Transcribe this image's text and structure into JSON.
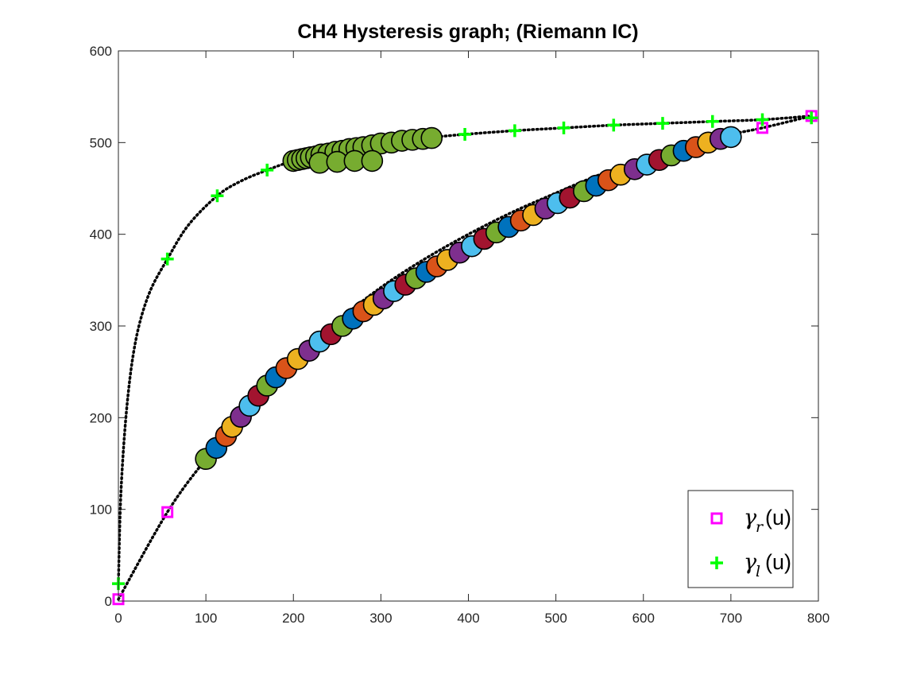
{
  "chart_data": {
    "type": "scatter",
    "title": "CH4 Hysteresis graph; (Riemann IC)",
    "xlabel": "",
    "ylabel": "",
    "xlim": [
      0,
      800
    ],
    "ylim": [
      0,
      600
    ],
    "xticks": [
      0,
      100,
      200,
      300,
      400,
      500,
      600,
      700,
      800
    ],
    "yticks": [
      0,
      100,
      200,
      300,
      400,
      500,
      600
    ],
    "grid": false,
    "legend_placement": "bottom-right",
    "legend": [
      {
        "symbol": "γ",
        "subscript": "r",
        "argument": "(u)",
        "marker": "square",
        "color": "#FF00FF"
      },
      {
        "symbol": "γ",
        "subscript": "l",
        "argument": "(u)",
        "marker": "plus",
        "color": "#00FF00"
      }
    ],
    "series": [
      {
        "marker": "square",
        "color": "#FF00FF",
        "x": [
          0,
          56,
          736,
          792
        ],
        "y": [
          2,
          97,
          516,
          529
        ]
      },
      {
        "marker": "plus",
        "color": "#00FF00",
        "x": [
          0,
          56,
          113,
          170,
          396,
          453,
          509,
          566,
          622,
          679,
          736,
          792
        ],
        "y": [
          19,
          373,
          442,
          470,
          509,
          513,
          516,
          519,
          521,
          523,
          525,
          527
        ]
      },
      {
        "name_hint": "dotted hysteresis curve (upper, left branch)",
        "line": "dotted",
        "x": [
          0,
          3,
          10,
          20,
          35,
          56,
          80,
          113,
          140,
          170,
          200,
          250,
          300,
          350,
          396,
          453,
          509,
          566,
          622,
          679,
          736,
          792
        ],
        "y": [
          19,
          120,
          215,
          285,
          335,
          373,
          410,
          442,
          458,
          470,
          480,
          492,
          500,
          505,
          509,
          513,
          516,
          519,
          521,
          523,
          525,
          529
        ]
      },
      {
        "name_hint": "dotted hysteresis curve (lower, right branch)",
        "line": "dotted",
        "x": [
          0,
          56,
          100,
          150,
          200,
          250,
          300,
          350,
          400,
          450,
          500,
          550,
          600,
          650,
          700,
          736,
          792
        ],
        "y": [
          2,
          97,
          155,
          213,
          263,
          305,
          342,
          373,
          400,
          424,
          445,
          465,
          482,
          497,
          509,
          516,
          529
        ]
      },
      {
        "name_hint": "wave circles along lower branch",
        "marker": "circle",
        "colors": [
          "#77AC30",
          "#0072BD",
          "#D95319",
          "#EDB120",
          "#7E2F8E",
          "#4DBEEE",
          "#A2142F"
        ],
        "x": [
          100,
          112,
          123,
          130,
          140,
          150,
          160,
          170,
          180,
          192,
          205,
          218,
          230,
          243,
          256,
          268,
          280,
          292,
          303,
          315,
          328,
          340,
          352,
          364,
          376,
          390,
          404,
          418,
          432,
          446,
          460,
          474,
          488,
          502,
          516,
          532,
          546,
          560,
          574,
          590,
          604,
          618,
          632,
          646,
          660,
          674,
          688,
          700
        ],
        "y": [
          155,
          167,
          180,
          190,
          201,
          213,
          224,
          235,
          244,
          254,
          264,
          273,
          283,
          291,
          300,
          308,
          316,
          323,
          330,
          338,
          345,
          352,
          359,
          365,
          372,
          380,
          387,
          395,
          402,
          408,
          415,
          421,
          428,
          434,
          440,
          447,
          453,
          459,
          465,
          471,
          476,
          481,
          486,
          491,
          495,
          500,
          504,
          506
        ]
      },
      {
        "name_hint": "wave circles along upper branch",
        "marker": "circle",
        "colors": [
          "#77AC30"
        ],
        "x": [
          200,
          205,
          210,
          215,
          220,
          226,
          232,
          240,
          248,
          256,
          264,
          272,
          280,
          290,
          300,
          312,
          324,
          336,
          348,
          358,
          230,
          250,
          270,
          290
        ],
        "y": [
          480,
          481,
          482,
          483,
          484,
          485,
          487,
          488,
          490,
          491,
          493,
          494,
          495,
          497,
          499,
          500,
          502,
          503,
          504,
          505,
          478,
          479,
          480,
          480
        ]
      }
    ]
  }
}
